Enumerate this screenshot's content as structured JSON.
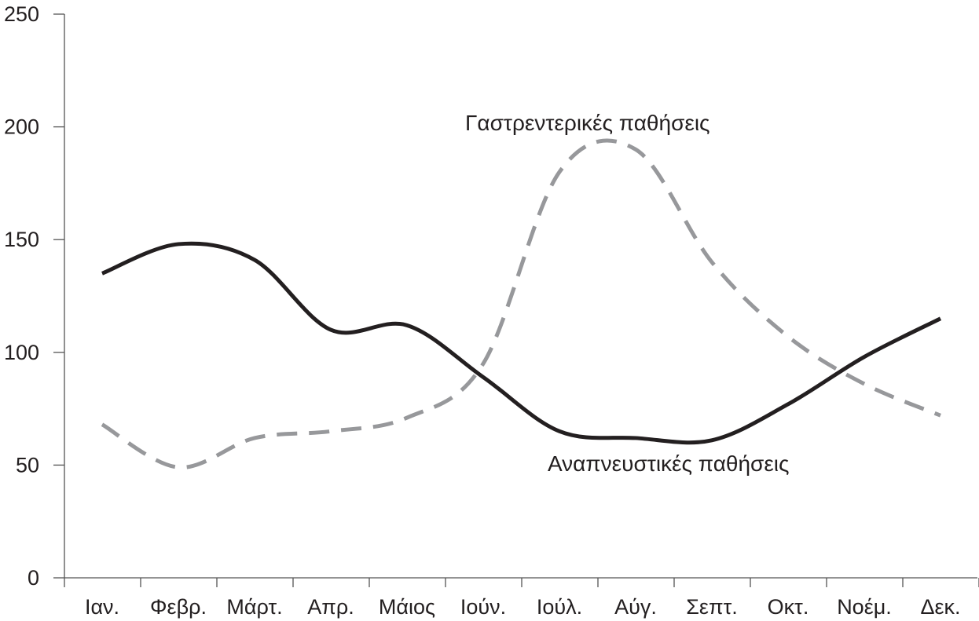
{
  "chart_data": {
    "type": "line",
    "title": "",
    "xlabel": "",
    "ylabel": "",
    "categories": [
      "Ιαν.",
      "Φεβρ.",
      "Μάρτ.",
      "Απρ.",
      "Μάιος",
      "Ιούν.",
      "Ιούλ.",
      "Αύγ.",
      "Σεπτ.",
      "Οκτ.",
      "Νοέμ.",
      "Δεκ."
    ],
    "ylim": [
      0,
      250
    ],
    "yticks": [
      0,
      50,
      100,
      150,
      200,
      250
    ],
    "grid": false,
    "series": [
      {
        "name": "Αναπνευστικές παθήσεις",
        "style": "solid",
        "color": "#231f20",
        "values": [
          135,
          148,
          141,
          110,
          112,
          89,
          65,
          62,
          61,
          77,
          98,
          115
        ]
      },
      {
        "name": "Γαστρεντερικές παθήσεις",
        "style": "dashed",
        "color": "#97989b",
        "values": [
          68,
          49,
          62,
          65,
          71,
          95,
          180,
          190,
          140,
          107,
          86,
          72
        ]
      }
    ]
  }
}
